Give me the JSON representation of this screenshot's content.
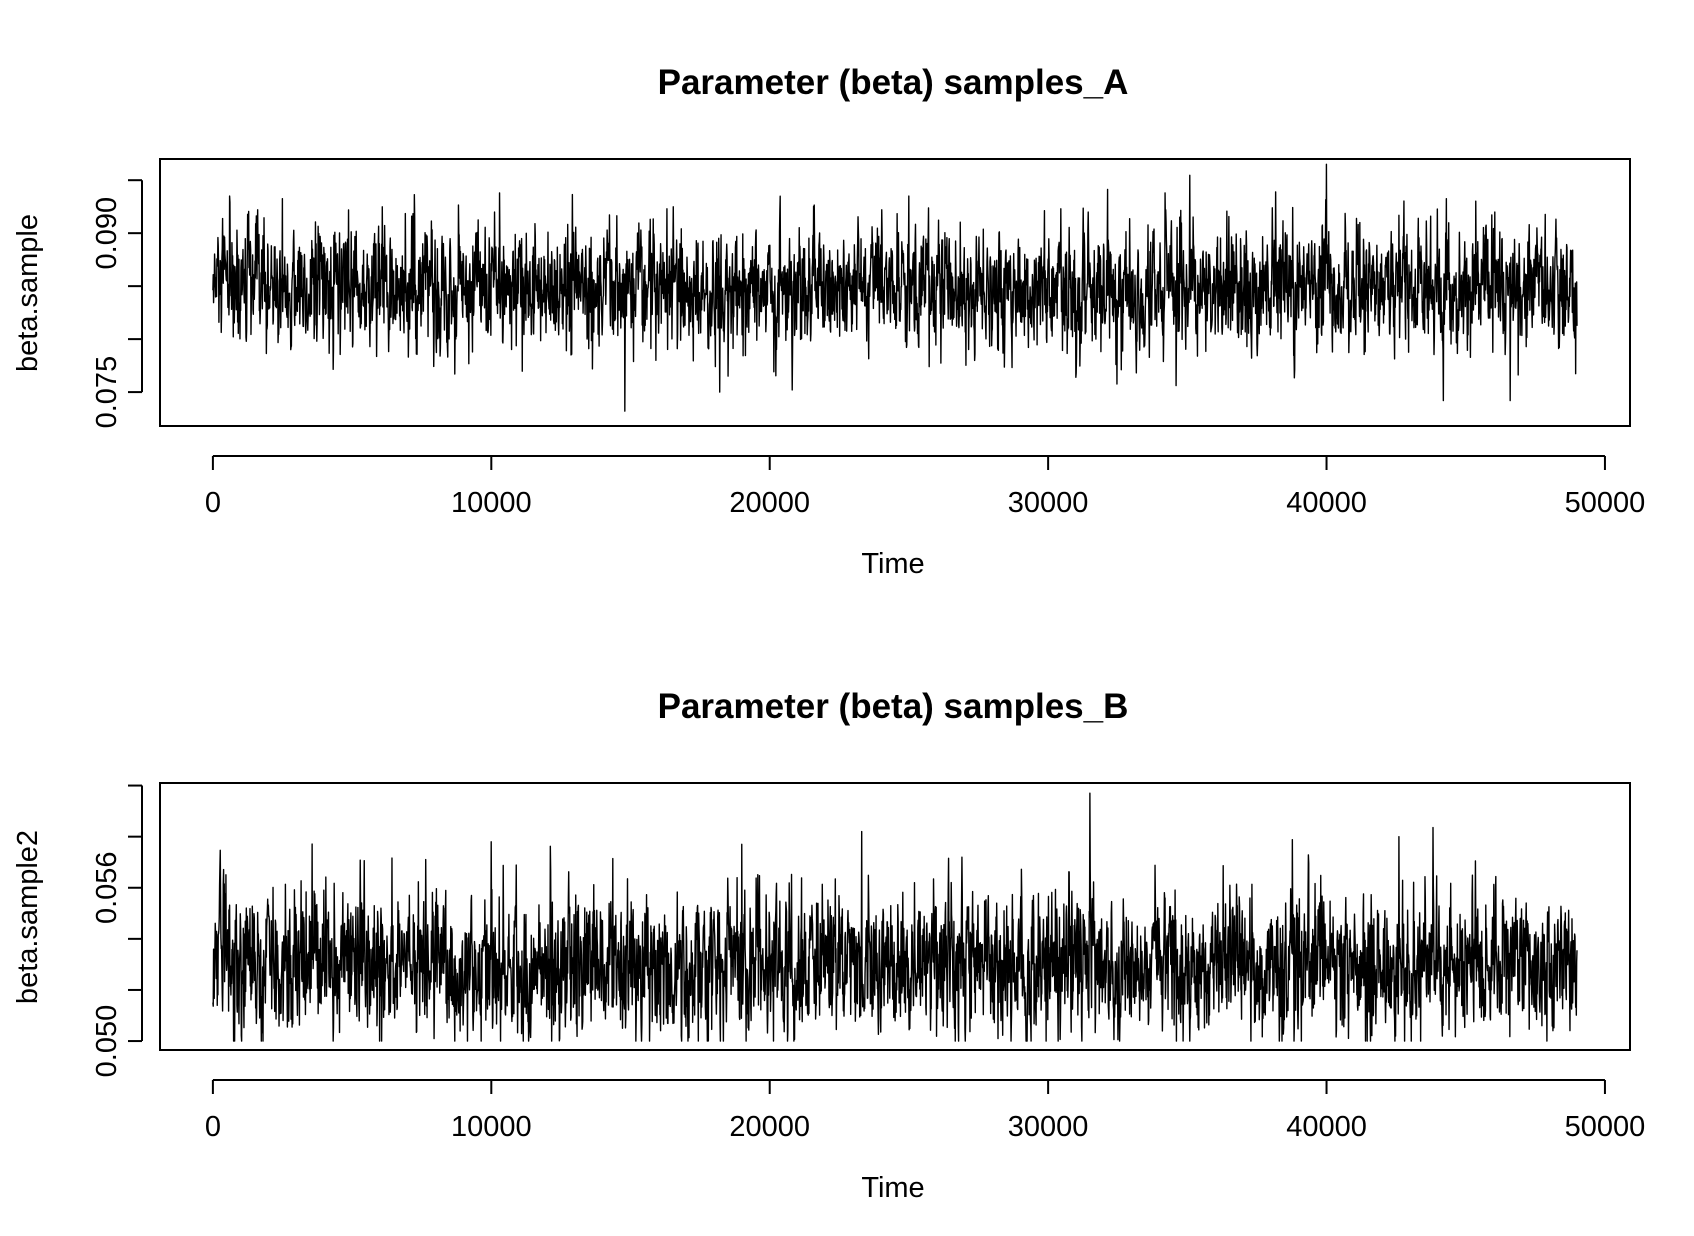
{
  "chart_data": [
    {
      "type": "line",
      "title": "Parameter (beta) samples_A",
      "xlabel": "Time",
      "ylabel": "beta.sample",
      "xlim": [
        -1900,
        50900
      ],
      "ylim": [
        0.0718,
        0.097
      ],
      "xticks": [
        0,
        10000,
        20000,
        30000,
        40000,
        50000
      ],
      "xtick_labels": [
        "0",
        "10000",
        "20000",
        "30000",
        "40000",
        "50000"
      ],
      "yticks": [
        0.075,
        0.08,
        0.085,
        0.09,
        0.095
      ],
      "ytick_labels": [
        "0.075",
        "",
        "0.090"
      ],
      "ytick_label_values": [
        0.075,
        0.085,
        0.09
      ],
      "grid": false,
      "series": [
        {
          "n": 49000,
          "center": 0.0848,
          "sd": 0.0027,
          "min": 0.0732,
          "max": 0.0965,
          "spikes": [
            [
              600,
              0.0935
            ],
            [
              10300,
              0.0938
            ],
            [
              14800,
              0.0732
            ],
            [
              18200,
              0.075
            ],
            [
              25000,
              0.0935
            ],
            [
              34200,
              0.0938
            ],
            [
              40000,
              0.0965
            ],
            [
              44200,
              0.0742
            ],
            [
              46600,
              0.0742
            ]
          ]
        }
      ]
    },
    {
      "type": "line",
      "title": "Parameter (beta) samples_B",
      "xlabel": "Time",
      "ylabel": "beta.sample2",
      "xlim": [
        -1900,
        50900
      ],
      "ylim": [
        0.04965,
        0.0601
      ],
      "xticks": [
        0,
        10000,
        20000,
        30000,
        40000,
        50000
      ],
      "xtick_labels": [
        "0",
        "10000",
        "20000",
        "30000",
        "40000",
        "50000"
      ],
      "yticks": [
        0.05,
        0.052,
        0.054,
        0.056,
        0.058,
        0.06
      ],
      "ytick_labels": [
        "0.050",
        "0.056"
      ],
      "ytick_label_values": [
        0.05,
        0.056
      ],
      "grid": false,
      "series": [
        {
          "n": 49000,
          "center": 0.053,
          "sd": 0.0013,
          "min": 0.05,
          "max": 0.0597,
          "spikes": [
            [
              10000,
              0.0578
            ],
            [
              19000,
              0.0577
            ],
            [
              23300,
              0.0582
            ],
            [
              31500,
              0.0597
            ],
            [
              42600,
              0.058
            ]
          ]
        }
      ]
    }
  ]
}
